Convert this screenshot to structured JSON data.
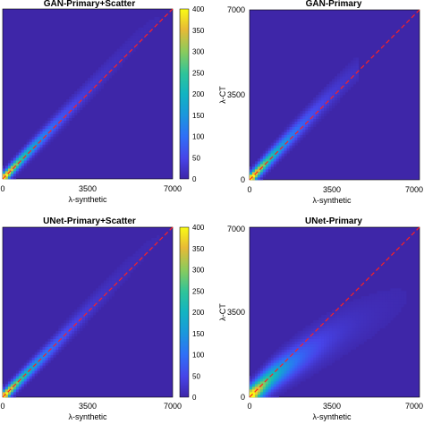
{
  "chart_data": [
    {
      "type": "heatmap",
      "title": "GAN-Primary+Scatter",
      "xlabel": "λ-synthetic",
      "ylabel": "",
      "xlim": [
        0,
        7000
      ],
      "ylim": [
        0,
        7000
      ],
      "xticks": [
        "0",
        "3500",
        "7000"
      ],
      "yticks": [],
      "reference_line": {
        "type": "identity",
        "style": "dashed",
        "color": "#ff2020"
      },
      "density_ridge": {
        "x": [
          0,
          1000,
          2000,
          3000,
          4000,
          5000,
          6000,
          7000
        ],
        "y": [
          0,
          1050,
          2080,
          3100,
          4150,
          5200,
          6250,
          7000
        ]
      },
      "spread": 0.05,
      "colorbar": {
        "min": 0,
        "max": 400,
        "ticks": [
          "0",
          "50",
          "100",
          "150",
          "200",
          "250",
          "300",
          "350",
          "400"
        ]
      }
    },
    {
      "type": "heatmap",
      "title": "GAN-Primary",
      "xlabel": "λ-synthetic",
      "ylabel": "λ-CT",
      "xlim": [
        0,
        7000
      ],
      "ylim": [
        0,
        7000
      ],
      "xticks": [
        "0",
        "3500",
        "7000"
      ],
      "yticks": [
        "0",
        "3500",
        "7000"
      ],
      "reference_line": {
        "type": "identity",
        "style": "dashed",
        "color": "#ff2020"
      },
      "density_ridge": {
        "x": [
          0,
          1000,
          2000,
          3000,
          4000,
          4500
        ],
        "y": [
          0,
          1050,
          2100,
          3150,
          4150,
          4600
        ]
      },
      "spread": 0.06
    },
    {
      "type": "heatmap",
      "title": "UNet-Primary+Scatter",
      "xlabel": "λ-synthetic",
      "ylabel": "",
      "xlim": [
        0,
        7000
      ],
      "ylim": [
        0,
        7000
      ],
      "xticks": [
        "0",
        "3500",
        "7000"
      ],
      "yticks": [],
      "reference_line": {
        "type": "identity",
        "style": "dashed",
        "color": "#ff2020"
      },
      "density_ridge": {
        "x": [
          0,
          1000,
          2000,
          3000,
          4000,
          5000,
          6000,
          7000
        ],
        "y": [
          0,
          1000,
          2000,
          3050,
          4100,
          5150,
          6200,
          7000
        ]
      },
      "spread": 0.05,
      "colorbar": {
        "min": 0,
        "max": 400,
        "ticks": [
          "0",
          "50",
          "100",
          "150",
          "200",
          "250",
          "300",
          "350",
          "400"
        ]
      }
    },
    {
      "type": "heatmap",
      "title": "UNet-Primary",
      "xlabel": "λ-synthetic",
      "ylabel": "λ-CT",
      "xlim": [
        0,
        7000
      ],
      "ylim": [
        0,
        7000
      ],
      "xticks": [
        "0",
        "3500",
        "7000"
      ],
      "yticks": [
        "0",
        "3500",
        "7000"
      ],
      "reference_line": {
        "type": "identity",
        "style": "dashed",
        "color": "#ff2020"
      },
      "density_ridge": {
        "x": [
          0,
          1000,
          2000,
          3000,
          4000,
          5000,
          6000,
          7000
        ],
        "y": [
          0,
          900,
          1600,
          2250,
          2850,
          3350,
          3900,
          4450
        ]
      },
      "spread": 0.12
    }
  ]
}
